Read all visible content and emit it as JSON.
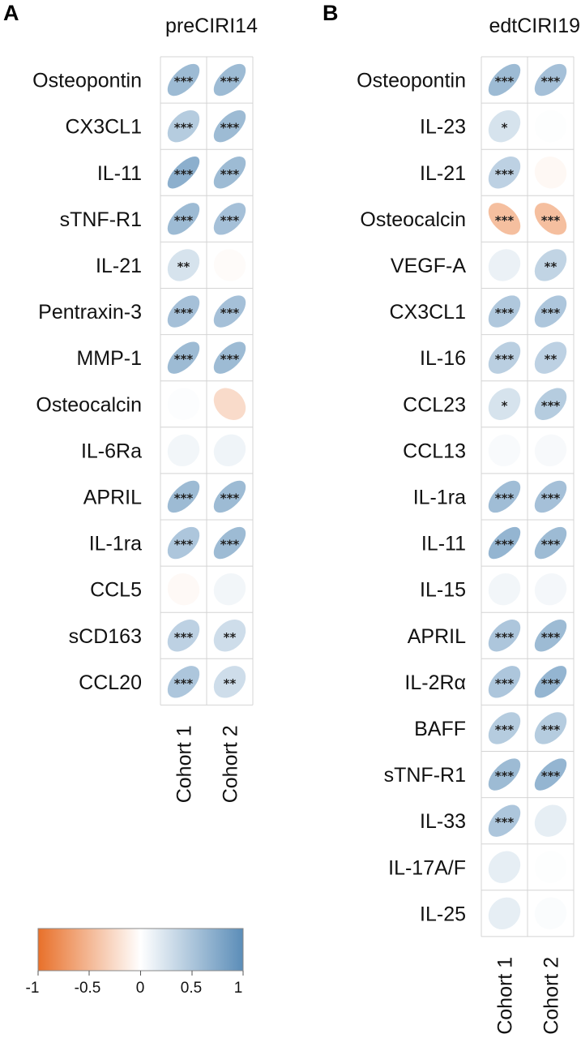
{
  "colors": {
    "negative": "#E8702A",
    "zero": "#FFFFFF",
    "positive": "#5B8DB8",
    "grid": "#D4D4D4"
  },
  "panel_labels": [
    "A",
    "B"
  ],
  "legend": {
    "ticks": [
      "-1",
      "-0.5",
      "0",
      "0.5",
      "1"
    ],
    "tick_values": [
      -1,
      -0.5,
      0,
      0.5,
      1
    ]
  },
  "chart_data": [
    {
      "type": "heatmap",
      "title": "preCIRI14",
      "columns": [
        "Cohort 1",
        "Cohort 2"
      ],
      "rows": [
        "Osteopontin",
        "CX3CL1",
        "IL-11",
        "sTNF-R1",
        "IL-21",
        "Pentraxin-3",
        "MMP-1",
        "Osteocalcin",
        "IL-6Ra",
        "APRIL",
        "IL-1ra",
        "CCL5",
        "sCD163",
        "CCL20"
      ],
      "values": [
        [
          0.6,
          0.6
        ],
        [
          0.45,
          0.6
        ],
        [
          0.7,
          0.6
        ],
        [
          0.6,
          0.55
        ],
        [
          0.25,
          -0.03
        ],
        [
          0.55,
          0.55
        ],
        [
          0.6,
          0.6
        ],
        [
          0.02,
          -0.25
        ],
        [
          0.08,
          0.1
        ],
        [
          0.6,
          0.6
        ],
        [
          0.5,
          0.6
        ],
        [
          -0.04,
          0.08
        ],
        [
          0.4,
          0.3
        ],
        [
          0.5,
          0.3
        ]
      ],
      "significance": [
        [
          "***",
          "***"
        ],
        [
          "***",
          "***"
        ],
        [
          "***",
          "***"
        ],
        [
          "***",
          "***"
        ],
        [
          "**",
          ""
        ],
        [
          "***",
          "***"
        ],
        [
          "***",
          "***"
        ],
        [
          "",
          ""
        ],
        [
          "",
          ""
        ],
        [
          "***",
          "***"
        ],
        [
          "***",
          "***"
        ],
        [
          "",
          ""
        ],
        [
          "***",
          "**"
        ],
        [
          "***",
          "**"
        ]
      ],
      "scale": [
        -1,
        1
      ]
    },
    {
      "type": "heatmap",
      "title": "edtCIRI19",
      "columns": [
        "Cohort 1",
        "Cohort 2"
      ],
      "rows": [
        "Osteopontin",
        "IL-23",
        "IL-21",
        "Osteocalcin",
        "VEGF-A",
        "CX3CL1",
        "IL-16",
        "CCL23",
        "CCL13",
        "IL-1ra",
        "IL-11",
        "IL-15",
        "APRIL",
        "IL-2Rα",
        "BAFF",
        "sTNF-R1",
        "IL-33",
        "IL-17A/F",
        "IL-25"
      ],
      "values": [
        [
          0.6,
          0.55
        ],
        [
          0.25,
          0.01
        ],
        [
          0.4,
          -0.05
        ],
        [
          -0.45,
          -0.45
        ],
        [
          0.12,
          0.38
        ],
        [
          0.48,
          0.5
        ],
        [
          0.42,
          0.4
        ],
        [
          0.25,
          0.45
        ],
        [
          0.04,
          0.05
        ],
        [
          0.58,
          0.55
        ],
        [
          0.65,
          0.6
        ],
        [
          0.08,
          0.07
        ],
        [
          0.5,
          0.6
        ],
        [
          0.5,
          0.65
        ],
        [
          0.45,
          0.45
        ],
        [
          0.6,
          0.65
        ],
        [
          0.5,
          0.15
        ],
        [
          0.15,
          0.01
        ],
        [
          0.15,
          0.03
        ]
      ],
      "significance": [
        [
          "***",
          "***"
        ],
        [
          "*",
          ""
        ],
        [
          "***",
          ""
        ],
        [
          "***",
          "***"
        ],
        [
          "",
          "**"
        ],
        [
          "***",
          "***"
        ],
        [
          "***",
          "**"
        ],
        [
          "*",
          "***"
        ],
        [
          "",
          ""
        ],
        [
          "***",
          "***"
        ],
        [
          "***",
          "***"
        ],
        [
          "",
          ""
        ],
        [
          "***",
          "***"
        ],
        [
          "***",
          "***"
        ],
        [
          "***",
          "***"
        ],
        [
          "***",
          "***"
        ],
        [
          "***",
          ""
        ],
        [
          "",
          ""
        ],
        [
          "",
          ""
        ]
      ],
      "scale": [
        -1,
        1
      ]
    }
  ]
}
